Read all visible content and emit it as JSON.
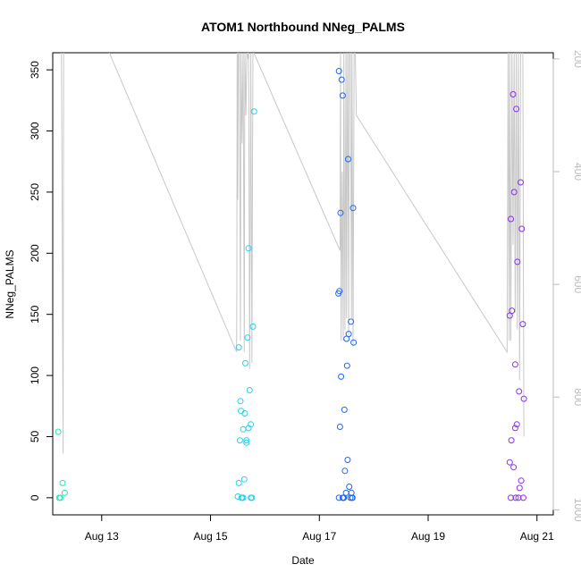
{
  "chart_data": {
    "type": "scatter",
    "title": "ATOM1 Northbound NNeg_PALMS",
    "xlabel": "Date",
    "ylabel": "NNeg_PALMS",
    "x_ticks": [
      "Aug 13",
      "Aug 15",
      "Aug 17",
      "Aug 19",
      "Aug 21"
    ],
    "x_tick_days": [
      13,
      15,
      17,
      19,
      21
    ],
    "xlim": [
      12.1,
      21.3
    ],
    "ylim": [
      -14,
      364
    ],
    "y_ticks": [
      0,
      50,
      100,
      150,
      200,
      250,
      300,
      350
    ],
    "y2_ticks": [
      200,
      400,
      600,
      800,
      1000
    ],
    "y2_range": [
      1009,
      189
    ],
    "secondary_line_color": "#c8c8c8",
    "secondary_series": {
      "x": [
        12.26,
        12.27,
        12.29,
        12.3,
        12.31,
        12.33,
        12.34,
        12.35,
        13.1,
        15.48,
        15.485,
        15.49,
        15.5,
        15.51,
        15.53,
        15.55,
        15.56,
        15.58,
        15.6,
        15.62,
        15.63,
        15.65,
        15.67,
        15.69,
        15.7,
        15.72,
        15.74,
        15.76,
        15.78,
        15.8,
        17.38,
        17.39,
        17.4,
        17.42,
        17.44,
        17.45,
        17.47,
        17.49,
        17.5,
        17.52,
        17.54,
        17.55,
        17.57,
        17.59,
        17.6,
        17.62,
        17.64,
        17.66,
        17.68,
        20.45,
        20.47,
        20.49,
        20.5,
        20.52,
        20.54,
        20.56,
        20.58,
        20.6,
        20.62,
        20.64,
        20.66,
        20.68,
        20.7,
        20.72,
        20.74,
        20.76
      ],
      "y": [
        180,
        367,
        900,
        180,
        180,
        180,
        180,
        180,
        180,
        720,
        580,
        180,
        450,
        180,
        180,
        700,
        180,
        350,
        180,
        720,
        180,
        300,
        180,
        200,
        180,
        750,
        180,
        740,
        180,
        190,
        540,
        180,
        700,
        400,
        700,
        180,
        680,
        180,
        660,
        180,
        690,
        180,
        180,
        660,
        180,
        710,
        180,
        180,
        300,
        720,
        180,
        700,
        180,
        700,
        180,
        530,
        180,
        650,
        180,
        680,
        180,
        770,
        180,
        180,
        180,
        870
      ]
    },
    "series": [
      {
        "color": "#1fe6b6",
        "x": [
          12.2,
          12.22,
          12.24,
          12.28,
          12.32
        ],
        "y": [
          54,
          0,
          0,
          12,
          4
        ]
      },
      {
        "color": "#22d2f0",
        "x": [
          15.5,
          15.52,
          15.54,
          15.56,
          15.58,
          15.6,
          15.62,
          15.64,
          15.66,
          15.68,
          15.7,
          15.72,
          15.74,
          15.76,
          15.78,
          15.52,
          15.55,
          15.57,
          15.6,
          15.63,
          15.66,
          15.7,
          15.74,
          15.8
        ],
        "y": [
          1,
          12,
          47,
          71,
          0,
          0,
          15,
          110,
          47,
          131,
          204,
          88,
          60,
          0,
          140,
          123,
          79,
          0,
          56,
          69,
          45,
          57,
          0,
          316
        ]
      },
      {
        "color": "#2266ee",
        "x": [
          17.35,
          17.37,
          17.39,
          17.41,
          17.43,
          17.45,
          17.47,
          17.49,
          17.51,
          17.53,
          17.55,
          17.57,
          17.59,
          17.61,
          17.63,
          17.36,
          17.38,
          17.4,
          17.43,
          17.46,
          17.5,
          17.54,
          17.58,
          17.62,
          17.36,
          17.44,
          17.52,
          17.6
        ],
        "y": [
          167,
          169,
          233,
          342,
          329,
          0,
          22,
          4,
          108,
          277,
          9,
          0,
          4,
          0,
          127,
          349,
          58,
          99,
          0,
          72,
          130,
          134,
          144,
          237,
          0,
          0,
          31,
          0
        ]
      },
      {
        "color": "#8833ee",
        "x": [
          20.5,
          20.52,
          20.54,
          20.56,
          20.58,
          20.6,
          20.62,
          20.64,
          20.66,
          20.68,
          20.7,
          20.72,
          20.74,
          20.76,
          20.5,
          20.53,
          20.57,
          20.6,
          20.63,
          20.67,
          20.71,
          20.75,
          20.52,
          20.61
        ],
        "y": [
          149,
          228,
          153,
          330,
          250,
          109,
          318,
          193,
          0,
          8,
          258,
          220,
          142,
          81,
          29,
          47,
          25,
          57,
          60,
          87,
          14,
          0,
          0,
          0
        ]
      }
    ],
    "legend": "none",
    "grid": false
  }
}
